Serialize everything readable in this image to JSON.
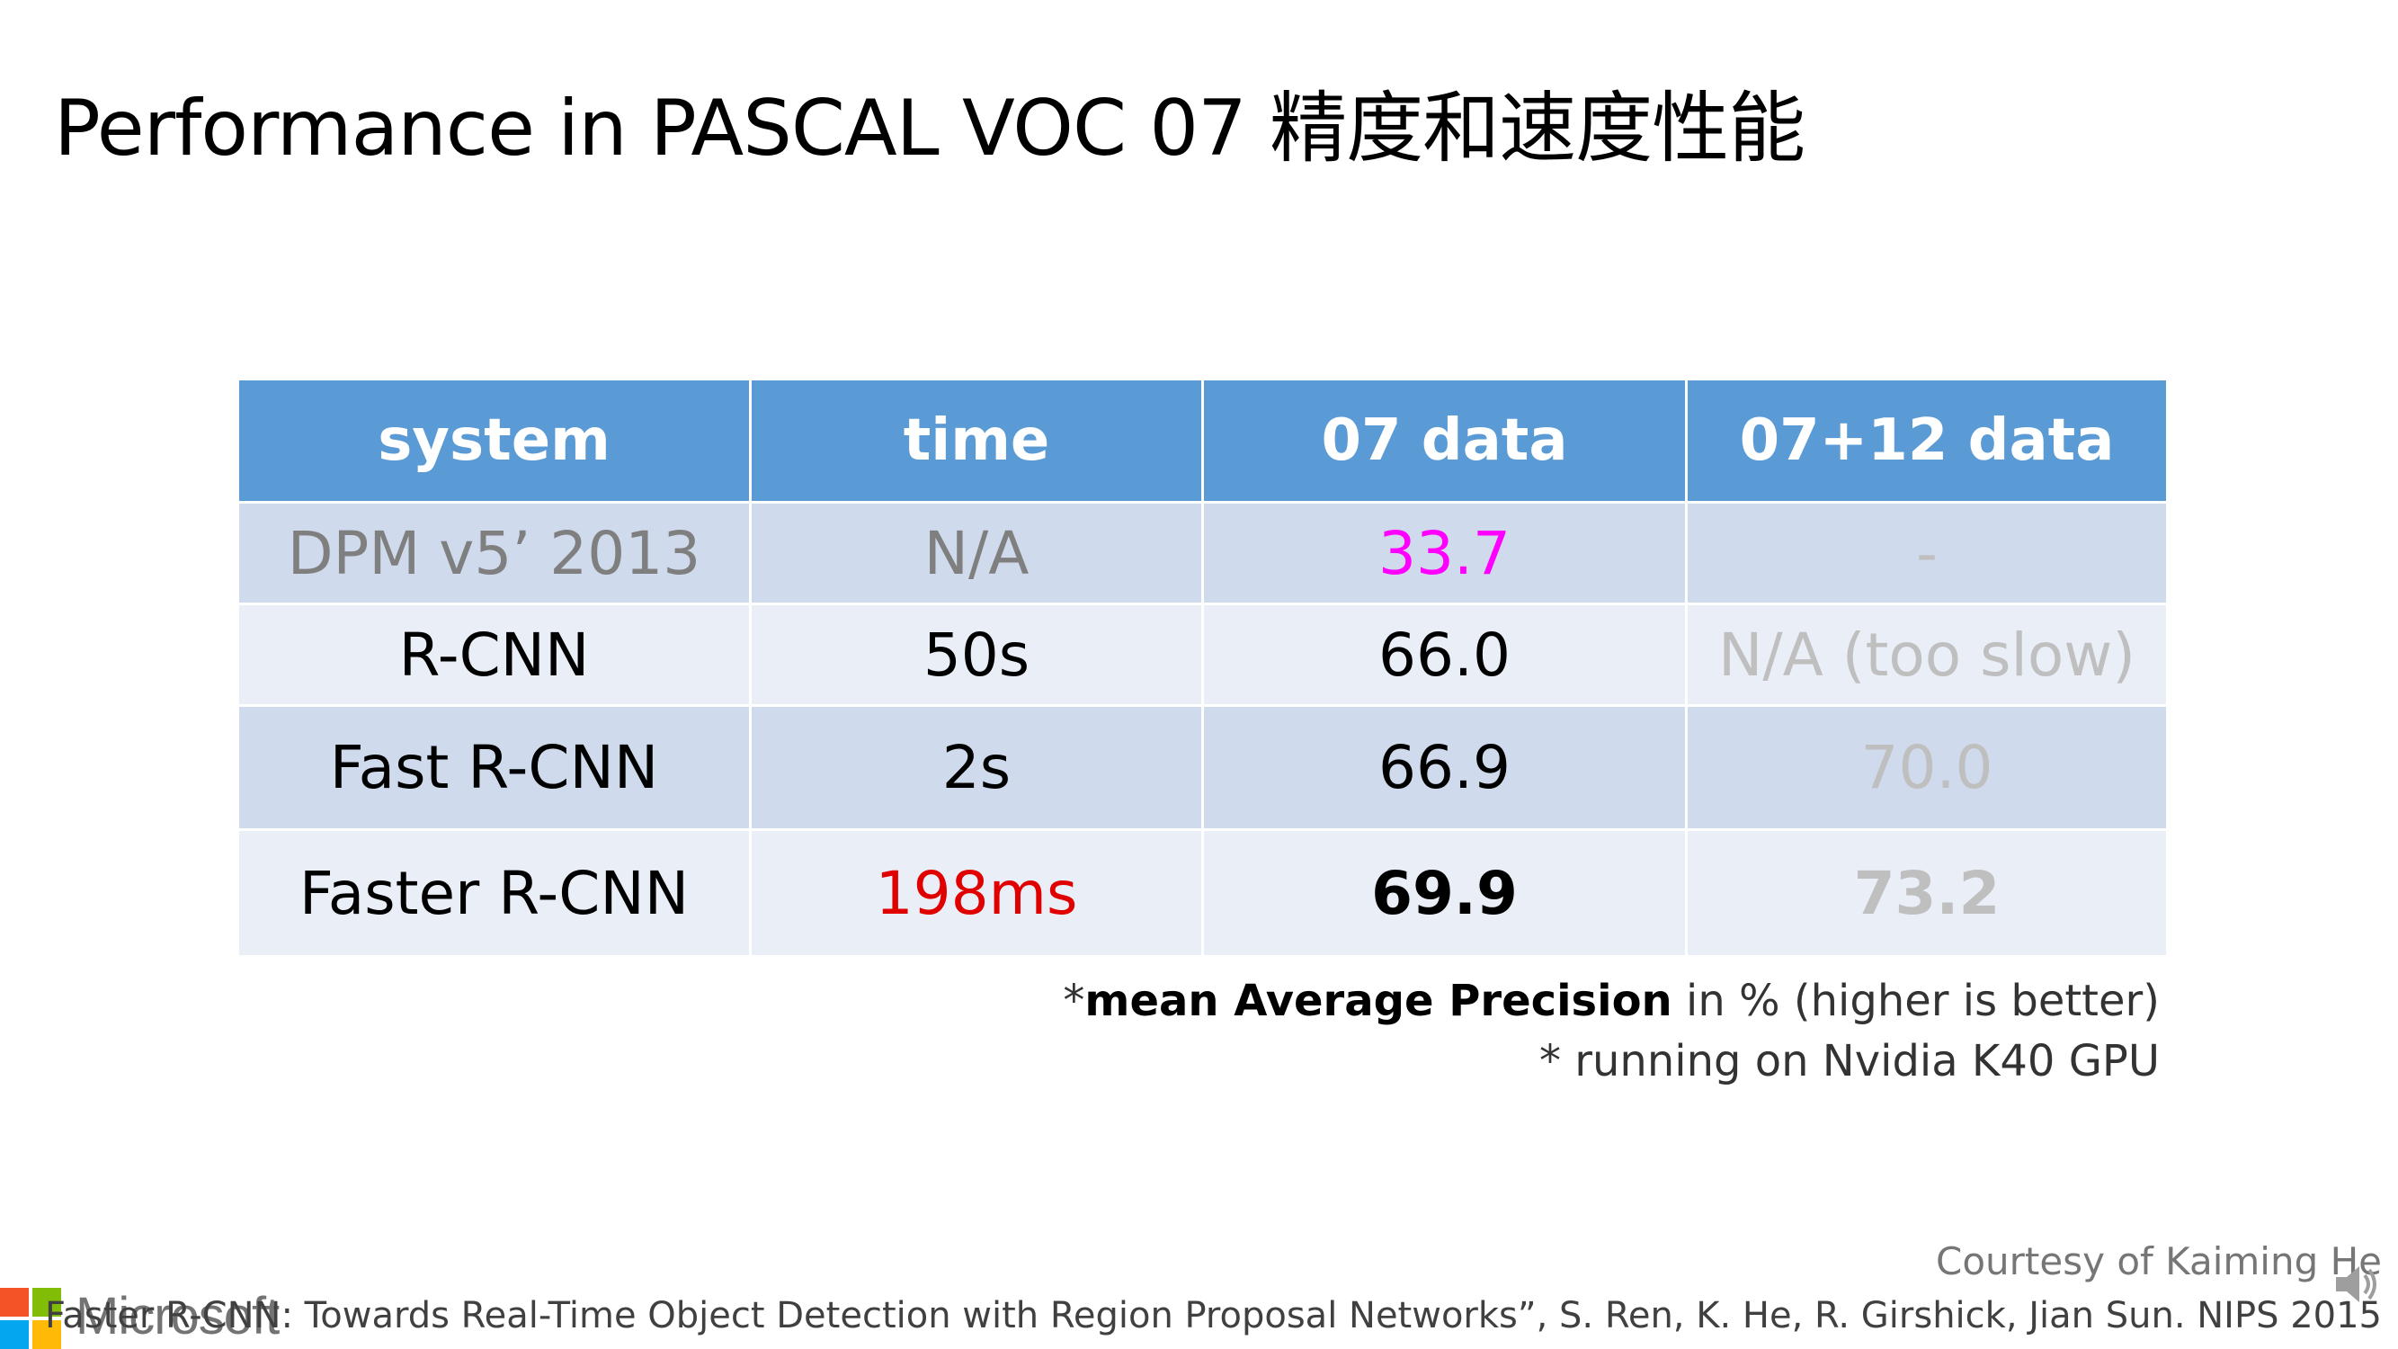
{
  "slide": {
    "title": "Performance in PASCAL VOC 07 精度和速度性能"
  },
  "table": {
    "headers": [
      "system",
      "time",
      "07 data",
      "07+12 data"
    ],
    "rows": [
      [
        "DPM v5’ 2013",
        "N/A",
        "33.7",
        "-"
      ],
      [
        "R-CNN",
        "50s",
        "66.0",
        "N/A (too slow)"
      ],
      [
        "Fast R-CNN",
        "2s",
        "66.9",
        "70.0"
      ],
      [
        "Faster R-CNN",
        "198ms",
        "69.9",
        "73.2"
      ]
    ]
  },
  "notes": {
    "map_star": "*",
    "map_bold": "mean Average Precision",
    "map_rest": " in % (higher is better)",
    "gpu": "* running on Nvidia K40 GPU"
  },
  "footer": {
    "courtesy": "Courtesy of Kaiming He",
    "citation": "Faster R-CNN: Towards Real-Time Object Detection with Region Proposal Networks”, S. Ren, K. He, R. Girshick, Jian Sun. NIPS 2015",
    "brand": "Microsoft"
  },
  "colors": {
    "header_bg": "#5b9bd5",
    "row_dark": "#cfdaec",
    "row_light": "#e9eef7",
    "highlight_magenta": "#ff00ff",
    "highlight_red": "#e00000",
    "muted_gray": "#bfbfbf"
  },
  "icons": {
    "logo": "microsoft-logo-icon",
    "audio": "speaker-icon"
  }
}
